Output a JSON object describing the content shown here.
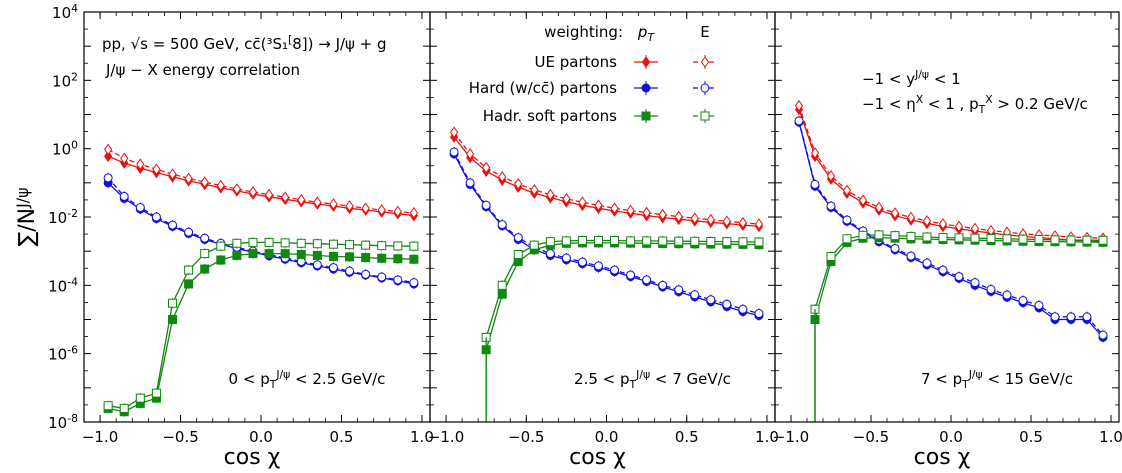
{
  "figure": {
    "ylabel": "∑/N^{J/ψ}",
    "xlabel": "cos χ"
  },
  "legend": {
    "title": "weighting:",
    "col_pt": "p_T",
    "col_e": "E",
    "entries": [
      {
        "label": "UE partons",
        "color": "#ee1111",
        "marker": "diamond"
      },
      {
        "label": "Hard (w/cc̄) partons",
        "color": "#1111dd",
        "marker": "circle"
      },
      {
        "label": "Hadr. soft partons",
        "color": "#118811",
        "marker": "square"
      }
    ]
  },
  "annotations": {
    "process": "pp,  √s = 500 GeV, cc̄(³S₁^[8]) → J/ψ + g",
    "correlation": "J/ψ − X energy correlation",
    "rapidity_cut": "−1 < y^{J/ψ} < 1",
    "eta_cut": "−1 < η^X < 1 , p_T^X > 0.2 GeV/c"
  },
  "chart_data": [
    {
      "type": "line",
      "panel_label": "0 < p_T^{J/ψ} < 2.5 GeV/c",
      "x": [
        -0.95,
        -0.85,
        -0.75,
        -0.65,
        -0.55,
        -0.45,
        -0.35,
        -0.25,
        -0.15,
        -0.05,
        0.05,
        0.15,
        0.25,
        0.35,
        0.45,
        0.55,
        0.65,
        0.75,
        0.85,
        0.95
      ],
      "xlim": [
        -1.1,
        1.05
      ],
      "ylim": [
        1e-08,
        10000.0
      ],
      "yscale": "log",
      "xticks": [
        "−1.0",
        "−0.5",
        "0.0",
        "0.5",
        "1.0"
      ],
      "yticks": [
        "10^{-8}",
        "10^{-6}",
        "10^{-4}",
        "10^{-2}",
        "10^{0}",
        "10^{2}",
        "10^{4}"
      ],
      "series": [
        {
          "name": "UE partons",
          "weighting": "pT",
          "values": [
            0.6,
            0.38,
            0.27,
            0.2,
            0.15,
            0.115,
            0.09,
            0.072,
            0.058,
            0.047,
            0.039,
            0.033,
            0.028,
            0.024,
            0.021,
            0.018,
            0.016,
            0.014,
            0.0125,
            0.011
          ]
        },
        {
          "name": "UE partons",
          "weighting": "E",
          "values": [
            0.95,
            0.52,
            0.35,
            0.25,
            0.18,
            0.135,
            0.105,
            0.083,
            0.066,
            0.054,
            0.045,
            0.038,
            0.032,
            0.027,
            0.024,
            0.021,
            0.018,
            0.016,
            0.0145,
            0.0132
          ]
        },
        {
          "name": "Hard (w/cc̄) partons",
          "weighting": "pT",
          "values": [
            0.1,
            0.035,
            0.017,
            0.009,
            0.0053,
            0.0033,
            0.0022,
            0.0016,
            0.0012,
            0.00092,
            0.00073,
            0.00058,
            0.00046,
            0.00037,
            0.0003,
            0.00024,
            0.0002,
            0.000165,
            0.000135,
            0.00011
          ]
        },
        {
          "name": "Hard (w/cc̄) partons",
          "weighting": "E",
          "values": [
            0.14,
            0.04,
            0.019,
            0.01,
            0.0058,
            0.0036,
            0.0024,
            0.0017,
            0.0013,
            0.001,
            0.00079,
            0.00063,
            0.0005,
            0.0004,
            0.00033,
            0.00026,
            0.00021,
            0.000175,
            0.000145,
            0.00012
          ]
        },
        {
          "name": "Hadr. soft partons",
          "weighting": "pT",
          "values": [
            2.5e-08,
            2e-08,
            3.5e-08,
            5e-08,
            1e-05,
            0.00011,
            0.0003,
            0.00055,
            0.00075,
            0.00085,
            0.00085,
            0.00085,
            0.0008,
            0.00075,
            0.0007,
            0.00068,
            0.00065,
            0.00062,
            0.0006,
            0.00058
          ]
        },
        {
          "name": "Hadr. soft partons",
          "weighting": "E",
          "values": [
            3e-08,
            2.5e-08,
            5e-08,
            7e-08,
            3e-05,
            0.00028,
            0.00085,
            0.0014,
            0.0017,
            0.0018,
            0.0018,
            0.00175,
            0.0017,
            0.00165,
            0.0016,
            0.00155,
            0.0015,
            0.00145,
            0.00142,
            0.0014
          ]
        }
      ]
    },
    {
      "type": "line",
      "panel_label": "2.5 < p_T^{J/ψ} < 7 GeV/c",
      "x": [
        -0.95,
        -0.85,
        -0.75,
        -0.65,
        -0.55,
        -0.45,
        -0.35,
        -0.25,
        -0.15,
        -0.05,
        0.05,
        0.15,
        0.25,
        0.35,
        0.45,
        0.55,
        0.65,
        0.75,
        0.85,
        0.95
      ],
      "xlim": [
        -1.1,
        1.05
      ],
      "ylim": [
        1e-08,
        10000.0
      ],
      "yscale": "log",
      "xticks": [
        "−1.0",
        "−0.5",
        "0.0",
        "0.5",
        "1.0"
      ],
      "series": [
        {
          "name": "UE partons",
          "weighting": "pT",
          "values": [
            2.2,
            0.55,
            0.22,
            0.12,
            0.075,
            0.05,
            0.037,
            0.028,
            0.022,
            0.018,
            0.015,
            0.013,
            0.011,
            0.0097,
            0.0086,
            0.0077,
            0.007,
            0.0064,
            0.0058,
            0.0053
          ]
        },
        {
          "name": "UE partons",
          "weighting": "E",
          "values": [
            3.0,
            0.7,
            0.28,
            0.15,
            0.093,
            0.062,
            0.045,
            0.034,
            0.027,
            0.022,
            0.018,
            0.0155,
            0.0134,
            0.0117,
            0.0103,
            0.0092,
            0.0083,
            0.0075,
            0.0068,
            0.0062
          ]
        },
        {
          "name": "Hard (w/cc̄) partons",
          "weighting": "pT",
          "values": [
            0.7,
            0.09,
            0.02,
            0.0055,
            0.0022,
            0.0011,
            0.00075,
            0.00056,
            0.00043,
            0.00033,
            0.00025,
            0.00018,
            0.00013,
            9e-05,
            6.5e-05,
            4.6e-05,
            3.3e-05,
            2.4e-05,
            1.7e-05,
            1.3e-05
          ]
        },
        {
          "name": "Hard (w/cc̄) partons",
          "weighting": "E",
          "values": [
            0.8,
            0.1,
            0.022,
            0.006,
            0.0025,
            0.0013,
            0.00085,
            0.00063,
            0.00048,
            0.00037,
            0.00028,
            0.0002,
            0.000145,
            0.0001,
            7.4e-05,
            5.3e-05,
            3.8e-05,
            2.8e-05,
            2e-05,
            1.5e-05
          ]
        },
        {
          "name": "Hadr. soft partons",
          "weighting": "pT",
          "values": [
            null,
            null,
            1.3e-06,
            5.5e-05,
            0.0005,
            0.0011,
            0.0015,
            0.0017,
            0.00175,
            0.00175,
            0.00175,
            0.00172,
            0.0017,
            0.00168,
            0.00166,
            0.00164,
            0.00162,
            0.0016,
            0.00158,
            0.00155
          ]
        },
        {
          "name": "Hadr. soft partons",
          "weighting": "E",
          "values": [
            null,
            null,
            3e-06,
            0.0001,
            0.0008,
            0.0015,
            0.0019,
            0.002,
            0.00205,
            0.00205,
            0.00205,
            0.002,
            0.002,
            0.00198,
            0.00196,
            0.00194,
            0.00192,
            0.0019,
            0.00188,
            0.00186
          ]
        }
      ]
    },
    {
      "type": "line",
      "panel_label": "7 < p_T^{J/ψ} < 15 GeV/c",
      "x": [
        -0.95,
        -0.85,
        -0.75,
        -0.65,
        -0.55,
        -0.45,
        -0.35,
        -0.25,
        -0.15,
        -0.05,
        0.05,
        0.15,
        0.25,
        0.35,
        0.45,
        0.55,
        0.65,
        0.75,
        0.85,
        0.95
      ],
      "xlim": [
        -1.1,
        1.05
      ],
      "ylim": [
        1e-08,
        10000.0
      ],
      "yscale": "log",
      "xticks": [
        "−1.0",
        "−0.5",
        "0.0",
        "0.5",
        "1.0"
      ],
      "series": [
        {
          "name": "UE partons",
          "weighting": "pT",
          "values": [
            14,
            0.6,
            0.13,
            0.05,
            0.026,
            0.016,
            0.011,
            0.0082,
            0.0065,
            0.0053,
            0.0045,
            0.0039,
            0.0034,
            0.003,
            0.0027,
            0.0025,
            0.0023,
            0.0021,
            0.002,
            0.0019
          ]
        },
        {
          "name": "UE partons",
          "weighting": "E",
          "values": [
            18,
            0.75,
            0.16,
            0.06,
            0.031,
            0.019,
            0.013,
            0.0097,
            0.0077,
            0.0063,
            0.0053,
            0.0046,
            0.004,
            0.0036,
            0.0032,
            0.003,
            0.0028,
            0.0026,
            0.0025,
            0.0024
          ]
        },
        {
          "name": "Hard (w/cc̄) partons",
          "weighting": "pT",
          "values": [
            6.0,
            0.08,
            0.019,
            0.0075,
            0.0036,
            0.0019,
            0.0011,
            0.00065,
            0.0004,
            0.00025,
            0.00016,
            0.0001,
            6.6e-05,
            4.5e-05,
            3.1e-05,
            2.2e-05,
            1e-05,
            1e-05,
            1e-05,
            3e-06
          ]
        },
        {
          "name": "Hard (w/cc̄) partons",
          "weighting": "E",
          "values": [
            6.5,
            0.09,
            0.021,
            0.0082,
            0.0039,
            0.0021,
            0.0012,
            0.00072,
            0.00045,
            0.00028,
            0.00018,
            0.00012,
            7.6e-05,
            5.2e-05,
            3.6e-05,
            2.6e-05,
            1.2e-05,
            1.2e-05,
            1.2e-05,
            3.5e-06
          ]
        },
        {
          "name": "Hadr. soft partons",
          "weighting": "pT",
          "values": [
            null,
            1e-05,
            0.0005,
            0.0018,
            0.0024,
            0.0025,
            0.0024,
            0.0023,
            0.00225,
            0.0022,
            0.00215,
            0.0021,
            0.00205,
            0.002,
            0.00195,
            0.00192,
            0.0019,
            0.00188,
            0.00185,
            0.00182
          ]
        },
        {
          "name": "Hadr. soft partons",
          "weighting": "E",
          "values": [
            null,
            2e-05,
            0.0007,
            0.0023,
            0.0029,
            0.003,
            0.00285,
            0.0027,
            0.0026,
            0.0025,
            0.00245,
            0.0024,
            0.00235,
            0.0023,
            0.00225,
            0.0022,
            0.00215,
            0.00212,
            0.0021,
            0.00208
          ]
        }
      ]
    }
  ]
}
